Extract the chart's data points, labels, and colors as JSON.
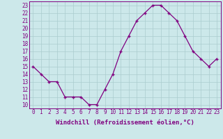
{
  "hours": [
    0,
    1,
    2,
    3,
    4,
    5,
    6,
    7,
    8,
    9,
    10,
    11,
    12,
    13,
    14,
    15,
    16,
    17,
    18,
    19,
    20,
    21,
    22,
    23
  ],
  "values": [
    15,
    14,
    13,
    13,
    11,
    11,
    11,
    10,
    10,
    12,
    14,
    17,
    19,
    21,
    22,
    23,
    23,
    22,
    21,
    19,
    17,
    16,
    15,
    16
  ],
  "line_color": "#800080",
  "marker": "+",
  "bg_color": "#cce8ea",
  "grid_color": "#aaccce",
  "xlabel": "Windchill (Refroidissement éolien,°C)",
  "ylabel_ticks": [
    10,
    11,
    12,
    13,
    14,
    15,
    16,
    17,
    18,
    19,
    20,
    21,
    22,
    23
  ],
  "ylim": [
    9.5,
    23.5
  ],
  "xlim": [
    -0.5,
    23.5
  ],
  "tick_color": "#800080",
  "label_color": "#800080",
  "spine_color": "#800080",
  "tick_fontsize": 5.5,
  "label_fontsize": 6.5
}
